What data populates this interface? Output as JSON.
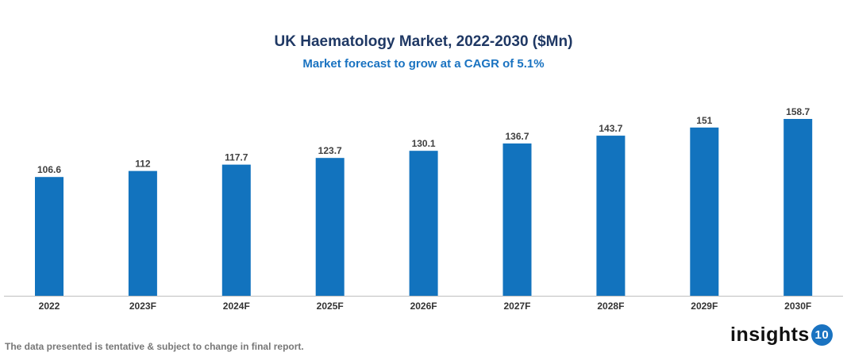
{
  "chart_data": {
    "type": "bar",
    "title": "UK Haematology Market, 2022-2030 ($Mn)",
    "subtitle": "Market forecast to grow at a CAGR of 5.1%",
    "categories": [
      "2022",
      "2023F",
      "2024F",
      "2025F",
      "2026F",
      "2027F",
      "2028F",
      "2029F",
      "2030F"
    ],
    "values": [
      106.6,
      112,
      117.7,
      123.7,
      130.1,
      136.7,
      143.7,
      151,
      158.7
    ],
    "value_labels": [
      "106.6",
      "112",
      "117.7",
      "123.7",
      "130.1",
      "136.7",
      "143.7",
      "151",
      "158.7"
    ],
    "ylim": [
      0,
      170
    ],
    "grid": false,
    "bar_color": "#1273be",
    "xlabel": "",
    "ylabel": ""
  },
  "footnote": "The data presented is tentative & subject to change in final report.",
  "logo": {
    "text": "insights",
    "badge": "10"
  }
}
